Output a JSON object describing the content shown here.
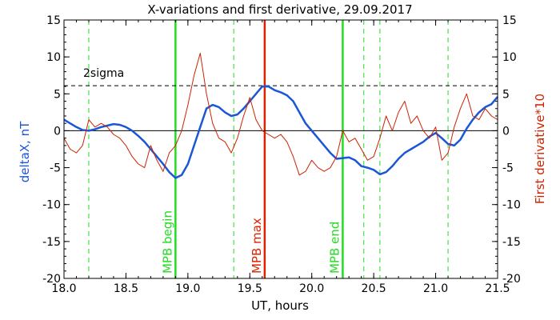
{
  "chart_data": {
    "type": "line",
    "title": "X-variations and first derivative, 29.09.2017",
    "xlabel": "UT, hours",
    "ylabel_left": "deltaX, nT",
    "ylabel_right": "First derivative*10",
    "xlim": [
      18.0,
      21.5
    ],
    "ylim": [
      -20,
      15
    ],
    "x_ticks": [
      "18.0",
      "18.5",
      "19.0",
      "19.5",
      "20.0",
      "20.5",
      "21.0",
      "21.5"
    ],
    "x_tick_values": [
      18.0,
      18.5,
      19.0,
      19.5,
      20.0,
      20.5,
      21.0,
      21.5
    ],
    "y_ticks": [
      "-20",
      "-15",
      "-10",
      "-5",
      "0",
      "5",
      "10",
      "15"
    ],
    "y_tick_values": [
      -20,
      -15,
      -10,
      -5,
      0,
      5,
      10,
      15
    ],
    "grid": false,
    "threshold": {
      "label": "2sigma",
      "value": 6.1,
      "style": "dashed",
      "color": "#000000"
    },
    "zero_line": 0,
    "vertical_markers": [
      {
        "x": 18.9,
        "label": "MPB begin",
        "color": "#22dd22",
        "style": "solid"
      },
      {
        "x": 19.62,
        "label": "MPB max",
        "color": "#dd2200",
        "style": "solid"
      },
      {
        "x": 20.25,
        "label": "MPB end",
        "color": "#22dd22",
        "style": "solid"
      },
      {
        "x": 18.2,
        "label": "",
        "color": "#22dd22",
        "style": "dashed"
      },
      {
        "x": 19.37,
        "label": "",
        "color": "#22dd22",
        "style": "dashed"
      },
      {
        "x": 20.42,
        "label": "",
        "color": "#22dd22",
        "style": "dashed"
      },
      {
        "x": 20.55,
        "label": "",
        "color": "#22dd22",
        "style": "dashed"
      },
      {
        "x": 21.1,
        "label": "",
        "color": "#22dd22",
        "style": "dashed"
      }
    ],
    "series": [
      {
        "color": "#1a56d6",
        "axis": "left",
        "x": [
          18.0,
          18.05,
          18.1,
          18.15,
          18.2,
          18.25,
          18.3,
          18.35,
          18.4,
          18.45,
          18.5,
          18.55,
          18.6,
          18.65,
          18.7,
          18.75,
          18.8,
          18.85,
          18.9,
          18.95,
          19.0,
          19.05,
          19.1,
          19.15,
          19.2,
          19.25,
          19.3,
          19.35,
          19.4,
          19.45,
          19.5,
          19.55,
          19.6,
          19.65,
          19.7,
          19.75,
          19.8,
          19.85,
          19.9,
          19.95,
          20.0,
          20.05,
          20.1,
          20.15,
          20.2,
          20.25,
          20.3,
          20.35,
          20.4,
          20.45,
          20.5,
          20.55,
          20.6,
          20.65,
          20.7,
          20.75,
          20.8,
          20.85,
          20.9,
          20.95,
          21.0,
          21.05,
          21.1,
          21.15,
          21.2,
          21.25,
          21.3,
          21.35,
          21.4,
          21.45,
          21.5
        ],
        "y": [
          1.5,
          1.0,
          0.5,
          0.1,
          0.0,
          0.2,
          0.5,
          0.7,
          0.9,
          0.8,
          0.5,
          0.0,
          -0.7,
          -1.5,
          -2.5,
          -3.5,
          -4.5,
          -5.6,
          -6.4,
          -6.0,
          -4.5,
          -2.0,
          0.5,
          3.0,
          3.5,
          3.2,
          2.5,
          2.0,
          2.2,
          3.0,
          4.0,
          5.0,
          6.0,
          6.0,
          5.5,
          5.2,
          4.8,
          4.0,
          2.5,
          1.0,
          0.0,
          -1.0,
          -2.0,
          -3.0,
          -3.8,
          -3.7,
          -3.6,
          -4.0,
          -4.8,
          -5.0,
          -5.3,
          -5.9,
          -5.6,
          -4.8,
          -3.8,
          -3.0,
          -2.5,
          -2.0,
          -1.5,
          -0.8,
          -0.3,
          -1.0,
          -1.8,
          -2.0,
          -1.2,
          0.3,
          1.5,
          2.5,
          3.2,
          3.6,
          4.6
        ]
      },
      {
        "color": "#cc2200",
        "axis": "right",
        "x": [
          18.0,
          18.05,
          18.1,
          18.15,
          18.2,
          18.25,
          18.3,
          18.35,
          18.4,
          18.45,
          18.5,
          18.55,
          18.6,
          18.65,
          18.7,
          18.75,
          18.8,
          18.85,
          18.9,
          18.95,
          19.0,
          19.05,
          19.1,
          19.15,
          19.2,
          19.25,
          19.3,
          19.35,
          19.4,
          19.45,
          19.5,
          19.55,
          19.6,
          19.65,
          19.7,
          19.75,
          19.8,
          19.85,
          19.9,
          19.95,
          20.0,
          20.05,
          20.1,
          20.15,
          20.2,
          20.25,
          20.3,
          20.35,
          20.4,
          20.45,
          20.5,
          20.55,
          20.6,
          20.65,
          20.7,
          20.75,
          20.8,
          20.85,
          20.9,
          20.95,
          21.0,
          21.05,
          21.1,
          21.15,
          21.2,
          21.25,
          21.3,
          21.35,
          21.4,
          21.45,
          21.5
        ],
        "y": [
          -1.0,
          -2.5,
          -3.0,
          -2.0,
          1.5,
          0.5,
          1.0,
          0.5,
          -0.5,
          -1.0,
          -2.0,
          -3.5,
          -4.5,
          -5.0,
          -2.0,
          -4.0,
          -5.5,
          -3.0,
          -2.0,
          0.0,
          3.5,
          7.5,
          10.5,
          5.0,
          1.0,
          -1.0,
          -1.5,
          -3.0,
          -1.0,
          2.0,
          4.5,
          1.5,
          0.0,
          -0.5,
          -1.0,
          -0.5,
          -1.5,
          -3.5,
          -6.0,
          -5.5,
          -4.0,
          -5.0,
          -5.5,
          -5.0,
          -3.5,
          0.0,
          -1.5,
          -1.0,
          -2.5,
          -4.0,
          -3.5,
          -1.0,
          2.0,
          0.0,
          2.5,
          4.0,
          1.0,
          2.0,
          0.0,
          -1.0,
          0.5,
          -4.0,
          -3.0,
          0.5,
          3.0,
          5.0,
          2.0,
          1.5,
          3.0,
          2.0,
          1.5
        ]
      }
    ]
  }
}
